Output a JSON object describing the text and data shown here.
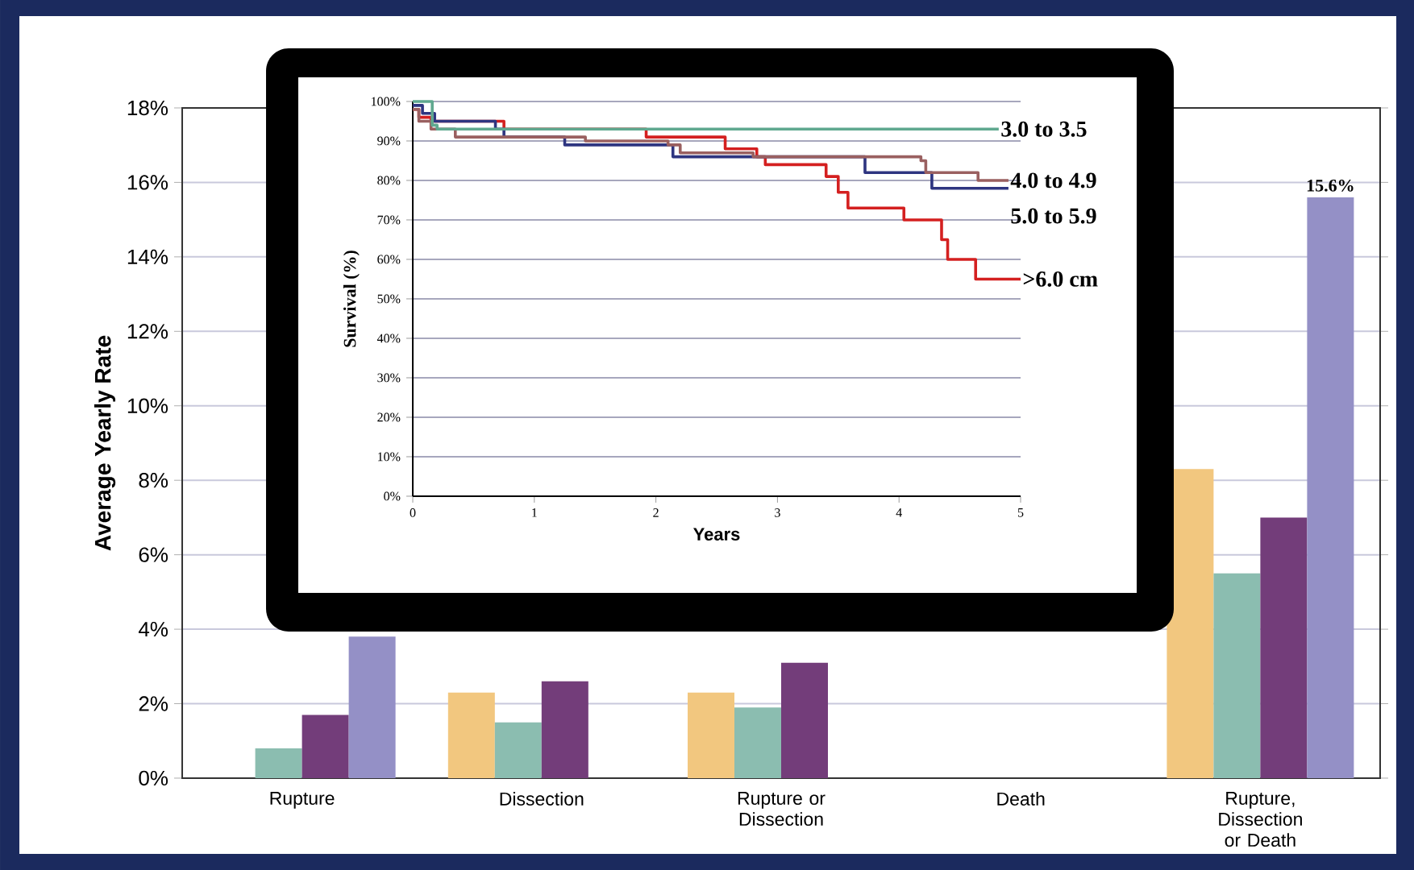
{
  "chart_data": [
    {
      "type": "bar",
      "ylabel": "Average Yearly Rate",
      "categories": [
        "Rupture",
        "Dissection",
        "Rupture or Dissection",
        "Death",
        "Rupture, Dissection or Death"
      ],
      "series": [
        {
          "color": "#f2c77f",
          "values": [
            null,
            2.3,
            2.3,
            null,
            8.3
          ]
        },
        {
          "color": "#8bbdb0",
          "values": [
            0.8,
            1.5,
            1.9,
            null,
            5.5
          ]
        },
        {
          "color": "#733d7a",
          "values": [
            1.7,
            2.6,
            3.1,
            null,
            7.0
          ]
        },
        {
          "color": "#9490c6",
          "values": [
            3.8,
            null,
            null,
            null,
            15.6
          ],
          "value_labels": [
            null,
            null,
            null,
            null,
            "15.6%"
          ]
        }
      ],
      "ylim": [
        0,
        18
      ],
      "yticks": [
        {
          "value": 0,
          "label": "0%"
        },
        {
          "value": 2,
          "label": "2%"
        },
        {
          "value": 4,
          "label": "4%"
        },
        {
          "value": 6,
          "label": "6%"
        },
        {
          "value": 8,
          "label": "8%"
        },
        {
          "value": 10,
          "label": "10%"
        },
        {
          "value": 12,
          "label": "12%"
        },
        {
          "value": 14,
          "label": "14%"
        },
        {
          "value": 16,
          "label": "16%"
        },
        {
          "value": 18,
          "label": "18%"
        }
      ],
      "grid": "y"
    },
    {
      "type": "step",
      "xlabel": "Years",
      "ylabel": "Survival (%)",
      "series": [
        {
          "name": "3.0 to 3.5",
          "color": "#5fa88f",
          "x": [
            0,
            0.16,
            0.2,
            4.82
          ],
          "values": [
            100,
            94,
            93,
            93
          ]
        },
        {
          "name": "4.0 to 4.9",
          "color": "#9a6060",
          "x": [
            0,
            0.05,
            0.15,
            0.35,
            1.42,
            2.1,
            2.2,
            2.8,
            4.18,
            4.22,
            4.65,
            4.9
          ],
          "values": [
            98,
            95,
            93,
            91,
            90,
            89,
            87,
            86,
            85,
            82,
            80,
            80
          ]
        },
        {
          "name": "5.0 to 5.9",
          "color": "#2e3580",
          "x": [
            0,
            0.08,
            0.18,
            0.68,
            0.75,
            1.25,
            2.14,
            3.72,
            4.27,
            4.9
          ],
          "values": [
            99,
            97,
            95,
            93,
            91,
            89,
            86,
            82,
            78,
            78
          ]
        },
        {
          "name": ">6.0 cm",
          "color": "#d42020",
          "x": [
            0,
            0.05,
            0.15,
            0.75,
            1.92,
            2.57,
            2.83,
            2.9,
            3.4,
            3.5,
            3.58,
            4.04,
            4.35,
            4.4,
            4.63,
            5
          ],
          "values": [
            98,
            96,
            95,
            93,
            91,
            88,
            86,
            84,
            81,
            77,
            73,
            70,
            65,
            60,
            55,
            55
          ]
        }
      ],
      "xlim": [
        0,
        5
      ],
      "xticks": [
        0,
        1,
        2,
        3,
        4,
        5
      ],
      "ylim": [
        0,
        100
      ],
      "yticks": [
        {
          "value": 0,
          "label": "0%"
        },
        {
          "value": 10,
          "label": "10%"
        },
        {
          "value": 20,
          "label": "20%"
        },
        {
          "value": 30,
          "label": "30%"
        },
        {
          "value": 40,
          "label": "40%"
        },
        {
          "value": 50,
          "label": "50%"
        },
        {
          "value": 60,
          "label": "60%"
        },
        {
          "value": 70,
          "label": "70%"
        },
        {
          "value": 80,
          "label": "80%"
        },
        {
          "value": 90,
          "label": "90%"
        },
        {
          "value": 100,
          "label": "100%"
        }
      ],
      "grid": "y"
    }
  ]
}
